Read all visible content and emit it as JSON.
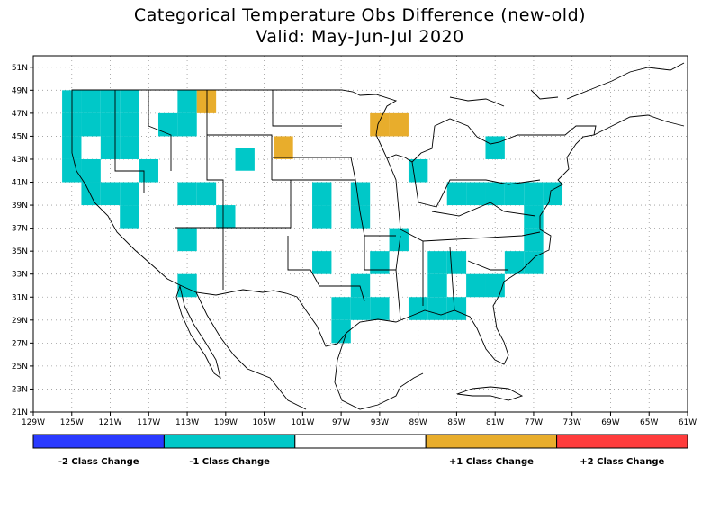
{
  "title_line1": "Categorical Temperature Obs Difference (new-old)",
  "title_line2": "Valid: May-Jun-Jul 2020",
  "lon_ticks": [
    "129W",
    "125W",
    "121W",
    "117W",
    "113W",
    "109W",
    "105W",
    "101W",
    "97W",
    "93W",
    "89W",
    "85W",
    "81W",
    "77W",
    "73W",
    "69W",
    "65W",
    "61W"
  ],
  "lat_ticks": [
    "51N",
    "49N",
    "47N",
    "45N",
    "43N",
    "41N",
    "39N",
    "37N",
    "35N",
    "33N",
    "31N",
    "29N",
    "27N",
    "25N",
    "23N",
    "21N"
  ],
  "colors": {
    "minus2": "#2a3aff",
    "minus1": "#00c8c8",
    "zero": "#ffffff",
    "plus1": "#e8ad2c",
    "plus2": "#ff3c3c",
    "grid": "#999999",
    "outline": "#000000"
  },
  "legend": [
    {
      "label": "-2 Class Change",
      "color": "#2a3aff"
    },
    {
      "label": "-1 Class Change",
      "color": "#00c8c8"
    },
    {
      "label": "",
      "color": "#ffffff"
    },
    {
      "label": "+1 Class Change",
      "color": "#e8ad2c"
    },
    {
      "label": "+2 Class Change",
      "color": "#ff3c3c"
    }
  ],
  "cells_minus1": [
    [
      125,
      48
    ],
    [
      123,
      48
    ],
    [
      121,
      48
    ],
    [
      119,
      48
    ],
    [
      113,
      48
    ],
    [
      125,
      46
    ],
    [
      123,
      46
    ],
    [
      121,
      46
    ],
    [
      119,
      46
    ],
    [
      115,
      46
    ],
    [
      113,
      46
    ],
    [
      125,
      44
    ],
    [
      121,
      44
    ],
    [
      119,
      44
    ],
    [
      125,
      42
    ],
    [
      123,
      42
    ],
    [
      117,
      42
    ],
    [
      107,
      43
    ],
    [
      81,
      44
    ],
    [
      89,
      42
    ],
    [
      123,
      40
    ],
    [
      121,
      40
    ],
    [
      119,
      40
    ],
    [
      113,
      40
    ],
    [
      111,
      40
    ],
    [
      99,
      40
    ],
    [
      95,
      40
    ],
    [
      85,
      40
    ],
    [
      83,
      40
    ],
    [
      81,
      40
    ],
    [
      79,
      40
    ],
    [
      77,
      40
    ],
    [
      75,
      40
    ],
    [
      119,
      38
    ],
    [
      109,
      38
    ],
    [
      99,
      38
    ],
    [
      95,
      38
    ],
    [
      77,
      38
    ],
    [
      113,
      36
    ],
    [
      91,
      36
    ],
    [
      77,
      36
    ],
    [
      99,
      34
    ],
    [
      93,
      34
    ],
    [
      87,
      34
    ],
    [
      85,
      34
    ],
    [
      79,
      34
    ],
    [
      77,
      34
    ],
    [
      113,
      32
    ],
    [
      95,
      32
    ],
    [
      87,
      32
    ],
    [
      83,
      32
    ],
    [
      81,
      32
    ],
    [
      97,
      30
    ],
    [
      95,
      30
    ],
    [
      93,
      30
    ],
    [
      89,
      30
    ],
    [
      87,
      30
    ],
    [
      85,
      30
    ],
    [
      97,
      28
    ]
  ],
  "cells_plus1": [
    [
      111,
      48
    ],
    [
      93,
      46
    ],
    [
      91,
      46
    ],
    [
      103,
      44
    ]
  ]
}
